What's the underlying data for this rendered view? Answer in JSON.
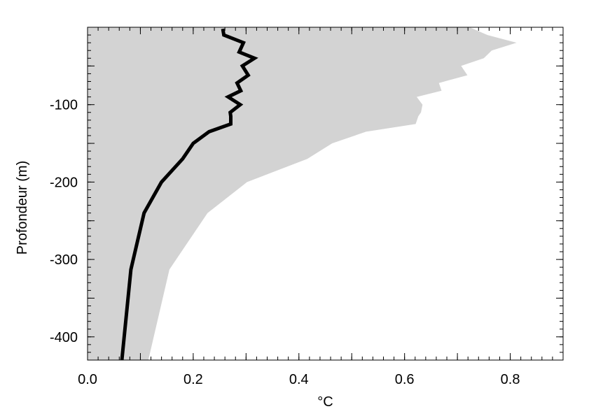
{
  "chart_data": {
    "type": "line",
    "xlabel": "°C",
    "ylabel": "Profondeur (m)",
    "xlim": [
      0,
      0.9
    ],
    "ylim": [
      -430,
      0
    ],
    "xticks": [
      0.0,
      0.2,
      0.4,
      0.6,
      0.8
    ],
    "xtick_labels": [
      "0.0",
      "0.2",
      "0.4",
      "0.6",
      "0.8"
    ],
    "yticks": [
      -100,
      -200,
      -300,
      -400
    ],
    "ytick_labels": [
      "-100",
      "-200",
      "-300",
      "-400"
    ],
    "grid": false,
    "series": [
      {
        "kind": "line",
        "color": "#000000",
        "x": [
          0.256,
          0.258,
          0.295,
          0.287,
          0.316,
          0.293,
          0.304,
          0.283,
          0.29,
          0.266,
          0.289,
          0.27,
          0.271,
          0.271,
          0.23,
          0.2,
          0.18,
          0.14,
          0.107,
          0.082,
          0.065
        ],
        "y": [
          -2,
          -10,
          -20,
          -32,
          -40,
          -50,
          -62,
          -72,
          -82,
          -90,
          -100,
          -110,
          -115,
          -125,
          -135,
          -150,
          -170,
          -200,
          -240,
          -313,
          -430
        ]
      },
      {
        "kind": "area",
        "color": "#d3d3d3",
        "x": [
          0.723,
          0.757,
          0.812,
          0.765,
          0.75,
          0.707,
          0.719,
          0.665,
          0.67,
          0.623,
          0.634,
          0.631,
          0.626,
          0.621,
          0.527,
          0.463,
          0.416,
          0.302,
          0.227,
          0.155,
          0.115
        ],
        "y": [
          0,
          -10,
          -20,
          -30,
          -40,
          -50,
          -62,
          -72,
          -82,
          -90,
          -100,
          -110,
          -115,
          -125,
          -135,
          -150,
          -170,
          -200,
          -240,
          -313,
          -430
        ]
      }
    ]
  }
}
